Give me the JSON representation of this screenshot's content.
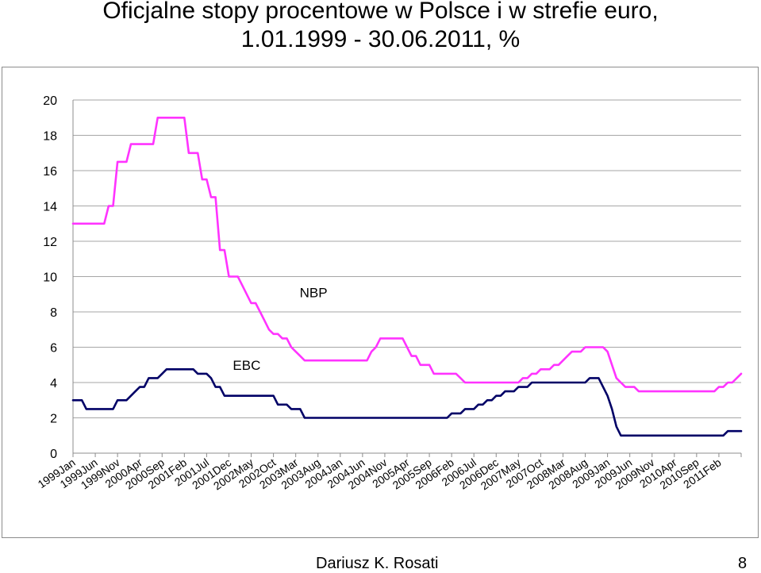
{
  "page": {
    "title_line1": "Oficjalne stopy procentowe w Polsce i w strefie euro,",
    "title_line2": "1.01.1999 - 30.06.2011, %",
    "author": "Dariusz K. Rosati",
    "page_number": "8"
  },
  "chart_data": {
    "type": "line",
    "title": "Oficjalne stopy procentowe w Polsce i w strefie euro, 1.01.1999 - 30.06.2011, %",
    "xlabel": "",
    "ylabel": "",
    "ylim": [
      0,
      20
    ],
    "yticks": [
      0,
      2,
      4,
      6,
      8,
      10,
      12,
      14,
      16,
      18,
      20
    ],
    "grid": "horizontal",
    "legend": "none",
    "x_tick_labels": [
      "1999Jan",
      "1999Jun",
      "1999Nov",
      "2000Apr",
      "2000Sep",
      "2001Feb",
      "2001Jul",
      "2001Dec",
      "2002May",
      "2002Oct",
      "2003Mar",
      "2003Aug",
      "2004Jan",
      "2004Jun",
      "2004Nov",
      "2005Apr",
      "2005Sep",
      "2006Feb",
      "2006Jul",
      "2006Dec",
      "2007May",
      "2007Oct",
      "2008Mar",
      "2008Aug",
      "2009Jan",
      "2009Jun",
      "2009Nov",
      "2010Apr",
      "2010Sep",
      "2011Feb"
    ],
    "x_tick_step_months": 5,
    "annotations": [
      {
        "text": "NBP",
        "month": 54,
        "y": 9.1
      },
      {
        "text": "EBC",
        "month": 39,
        "y": 5.0
      }
    ],
    "series": [
      {
        "name": "NBP",
        "color": "#ff33ff",
        "points": [
          [
            0,
            13.0
          ],
          [
            7,
            13.0
          ],
          [
            8,
            14.0
          ],
          [
            9,
            14.0
          ],
          [
            10,
            16.5
          ],
          [
            12,
            16.5
          ],
          [
            13,
            17.5
          ],
          [
            18,
            17.5
          ],
          [
            19,
            19.0
          ],
          [
            25,
            19.0
          ],
          [
            26,
            17.0
          ],
          [
            28,
            17.0
          ],
          [
            29,
            15.5
          ],
          [
            30,
            15.5
          ],
          [
            31,
            14.5
          ],
          [
            32,
            14.5
          ],
          [
            33,
            11.5
          ],
          [
            34,
            11.5
          ],
          [
            35,
            10.0
          ],
          [
            37,
            10.0
          ],
          [
            38,
            9.5
          ],
          [
            40,
            8.5
          ],
          [
            41,
            8.5
          ],
          [
            42,
            8.0
          ],
          [
            43,
            7.5
          ],
          [
            44,
            7.0
          ],
          [
            45,
            6.75
          ],
          [
            46,
            6.75
          ],
          [
            47,
            6.5
          ],
          [
            48,
            6.5
          ],
          [
            49,
            6.0
          ],
          [
            50,
            5.75
          ],
          [
            51,
            5.5
          ],
          [
            52,
            5.25
          ],
          [
            66,
            5.25
          ],
          [
            67,
            5.75
          ],
          [
            68,
            6.0
          ],
          [
            69,
            6.5
          ],
          [
            74,
            6.5
          ],
          [
            75,
            6.0
          ],
          [
            76,
            5.5
          ],
          [
            77,
            5.5
          ],
          [
            78,
            5.0
          ],
          [
            80,
            5.0
          ],
          [
            81,
            4.5
          ],
          [
            86,
            4.5
          ],
          [
            87,
            4.25
          ],
          [
            88,
            4.0
          ],
          [
            100,
            4.0
          ],
          [
            101,
            4.25
          ],
          [
            102,
            4.25
          ],
          [
            103,
            4.5
          ],
          [
            104,
            4.5
          ],
          [
            105,
            4.75
          ],
          [
            107,
            4.75
          ],
          [
            108,
            5.0
          ],
          [
            109,
            5.0
          ],
          [
            110,
            5.25
          ],
          [
            111,
            5.5
          ],
          [
            112,
            5.75
          ],
          [
            114,
            5.75
          ],
          [
            115,
            6.0
          ],
          [
            119,
            6.0
          ],
          [
            120,
            5.75
          ],
          [
            121,
            5.0
          ],
          [
            122,
            4.25
          ],
          [
            123,
            4.0
          ],
          [
            124,
            3.75
          ],
          [
            126,
            3.75
          ],
          [
            127,
            3.5
          ],
          [
            144,
            3.5
          ],
          [
            145,
            3.75
          ],
          [
            146,
            3.75
          ],
          [
            147,
            4.0
          ],
          [
            148,
            4.0
          ],
          [
            150,
            4.5
          ]
        ]
      },
      {
        "name": "EBC",
        "color": "#000066",
        "points": [
          [
            0,
            3.0
          ],
          [
            2,
            3.0
          ],
          [
            3,
            2.5
          ],
          [
            9,
            2.5
          ],
          [
            10,
            3.0
          ],
          [
            12,
            3.0
          ],
          [
            13,
            3.25
          ],
          [
            14,
            3.5
          ],
          [
            15,
            3.75
          ],
          [
            16,
            3.75
          ],
          [
            17,
            4.25
          ],
          [
            19,
            4.25
          ],
          [
            20,
            4.5
          ],
          [
            21,
            4.75
          ],
          [
            27,
            4.75
          ],
          [
            28,
            4.5
          ],
          [
            30,
            4.5
          ],
          [
            31,
            4.25
          ],
          [
            32,
            3.75
          ],
          [
            33,
            3.75
          ],
          [
            34,
            3.25
          ],
          [
            45,
            3.25
          ],
          [
            46,
            2.75
          ],
          [
            48,
            2.75
          ],
          [
            49,
            2.5
          ],
          [
            51,
            2.5
          ],
          [
            52,
            2.0
          ],
          [
            84,
            2.0
          ],
          [
            85,
            2.25
          ],
          [
            87,
            2.25
          ],
          [
            88,
            2.5
          ],
          [
            90,
            2.5
          ],
          [
            91,
            2.75
          ],
          [
            92,
            2.75
          ],
          [
            93,
            3.0
          ],
          [
            94,
            3.0
          ],
          [
            95,
            3.25
          ],
          [
            96,
            3.25
          ],
          [
            97,
            3.5
          ],
          [
            99,
            3.5
          ],
          [
            100,
            3.75
          ],
          [
            102,
            3.75
          ],
          [
            103,
            4.0
          ],
          [
            115,
            4.0
          ],
          [
            116,
            4.25
          ],
          [
            118,
            4.25
          ],
          [
            119,
            3.75
          ],
          [
            120,
            3.25
          ],
          [
            121,
            2.5
          ],
          [
            122,
            1.5
          ],
          [
            123,
            1.0
          ],
          [
            146,
            1.0
          ],
          [
            147,
            1.25
          ],
          [
            150,
            1.25
          ]
        ]
      }
    ]
  }
}
